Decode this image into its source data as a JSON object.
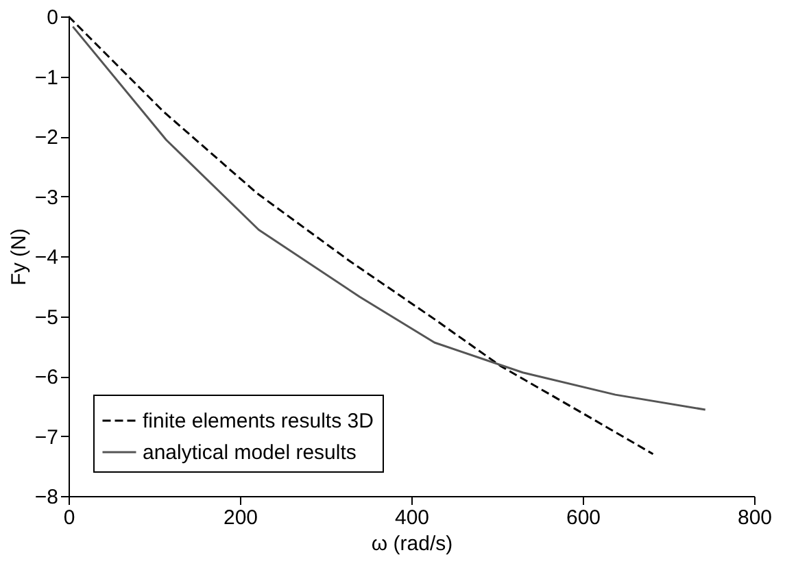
{
  "chart_data": {
    "type": "line",
    "xlabel": "ω (rad/s)",
    "ylabel": "Fy (N)",
    "xlim": [
      0,
      800
    ],
    "ylim": [
      -8,
      0
    ],
    "xticks": [
      0,
      200,
      400,
      600,
      800
    ],
    "yticks": [
      0,
      -1,
      -2,
      -3,
      -4,
      -5,
      -6,
      -7,
      -8
    ],
    "grid": false,
    "legend": "bottom left",
    "marker": "none",
    "series": [
      {
        "name": "finite elements results 3D",
        "color": "#000000",
        "line_style": "dashed",
        "x": [
          0,
          111,
          220,
          328,
          427,
          504,
          600,
          682
        ],
        "values": [
          0,
          -1.59,
          -2.95,
          -4.08,
          -5.05,
          -5.83,
          -6.62,
          -7.3
        ]
      },
      {
        "name": "analytical model results",
        "color": "#555555",
        "line_style": "solid",
        "x": [
          5,
          114,
          222,
          340,
          427,
          530,
          638,
          743
        ],
        "values": [
          -0.17,
          -2.06,
          -3.56,
          -4.68,
          -5.44,
          -5.94,
          -6.31,
          -6.56
        ]
      }
    ]
  }
}
